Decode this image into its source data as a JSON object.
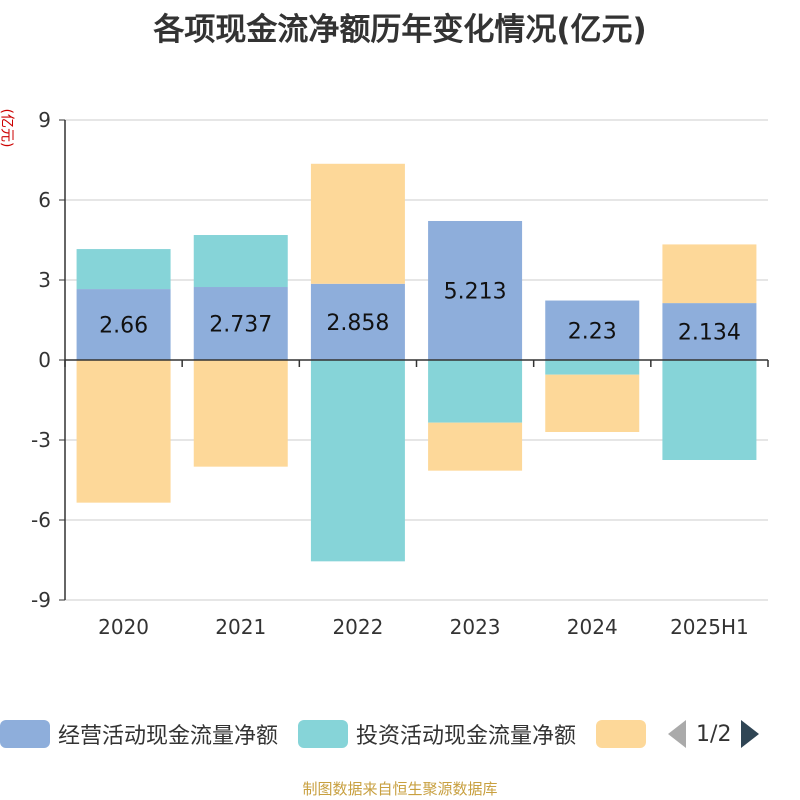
{
  "title": "各项现金流净额历年变化情况(亿元)",
  "unit": "(亿元)",
  "legend": {
    "items": [
      {
        "label": "经营活动现金流量净额",
        "color": "#8eaedb"
      },
      {
        "label": "投资活动现金流量净额",
        "color": "#86d4d8"
      },
      {
        "label": "",
        "color": "#fdd899"
      }
    ],
    "page": "1/2"
  },
  "footer": "制图数据来自恒生聚源数据库",
  "chart_data": {
    "type": "bar",
    "stacked": true,
    "categories": [
      "2020",
      "2021",
      "2022",
      "2023",
      "2024",
      "2025H1"
    ],
    "series": [
      {
        "name": "经营活动现金流量净额",
        "color": "#8eaedb",
        "values": [
          2.66,
          2.737,
          2.858,
          5.213,
          2.23,
          2.134
        ]
      },
      {
        "name": "投资活动现金流量净额",
        "color": "#86d4d8",
        "values": [
          1.5,
          1.95,
          -7.55,
          -2.35,
          -0.55,
          -3.75
        ]
      },
      {
        "name": "",
        "color": "#fdd899",
        "values": [
          -5.35,
          -4.0,
          4.5,
          -1.8,
          -2.15,
          2.2
        ]
      }
    ],
    "data_labels": [
      "2.66",
      "2.737",
      "2.858",
      "5.213",
      "2.23",
      "2.134"
    ],
    "ylim": [
      -9,
      9
    ],
    "yticks": [
      9,
      6,
      3,
      0,
      -3,
      -6,
      -9
    ],
    "grid": true,
    "legend_position": "bottom"
  }
}
